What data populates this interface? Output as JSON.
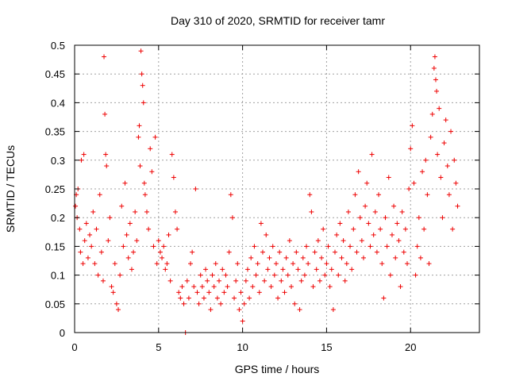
{
  "chart_data": {
    "type": "scatter",
    "title": "Day 310 of 2020, SRMTID for receiver tamr",
    "xlabel": "GPS time / hours",
    "ylabel": "SRMTID / TECUs",
    "xlim": [
      0,
      24.1
    ],
    "ylim": [
      0,
      0.5
    ],
    "x_ticks": [
      0,
      5,
      10,
      15,
      20
    ],
    "x_tick_labels": [
      "0",
      "5",
      "10",
      "15",
      "20"
    ],
    "y_ticks": [
      0,
      0.05,
      0.1,
      0.15,
      0.2,
      0.25,
      0.3,
      0.35,
      0.4,
      0.45,
      0.5
    ],
    "y_tick_labels": [
      "0",
      "0.05",
      "0.1",
      "0.15",
      "0.2",
      "0.25",
      "0.3",
      "0.35",
      "0.4",
      "0.45",
      "0.5"
    ],
    "grid": true,
    "marker": "+",
    "color": "#ee0000",
    "series": [
      {
        "name": "SRMTID",
        "points": [
          [
            0.05,
            0.22
          ],
          [
            0.1,
            0.24
          ],
          [
            0.15,
            0.2
          ],
          [
            0.2,
            0.25
          ],
          [
            0.3,
            0.18
          ],
          [
            0.35,
            0.14
          ],
          [
            0.4,
            0.3
          ],
          [
            0.5,
            0.12
          ],
          [
            0.55,
            0.31
          ],
          [
            0.6,
            0.16
          ],
          [
            0.7,
            0.19
          ],
          [
            0.8,
            0.13
          ],
          [
            0.9,
            0.17
          ],
          [
            1.0,
            0.15
          ],
          [
            1.1,
            0.21
          ],
          [
            1.2,
            0.12
          ],
          [
            1.3,
            0.18
          ],
          [
            1.4,
            0.1
          ],
          [
            1.5,
            0.24
          ],
          [
            1.6,
            0.14
          ],
          [
            1.7,
            0.09
          ],
          [
            1.75,
            0.48
          ],
          [
            1.8,
            0.38
          ],
          [
            1.85,
            0.31
          ],
          [
            1.9,
            0.29
          ],
          [
            2.0,
            0.16
          ],
          [
            2.1,
            0.2
          ],
          [
            2.2,
            0.08
          ],
          [
            2.3,
            0.07
          ],
          [
            2.4,
            0.12
          ],
          [
            2.5,
            0.05
          ],
          [
            2.6,
            0.04
          ],
          [
            2.7,
            0.1
          ],
          [
            2.8,
            0.22
          ],
          [
            2.9,
            0.15
          ],
          [
            3.0,
            0.26
          ],
          [
            3.1,
            0.17
          ],
          [
            3.2,
            0.13
          ],
          [
            3.3,
            0.19
          ],
          [
            3.4,
            0.11
          ],
          [
            3.5,
            0.14
          ],
          [
            3.6,
            0.21
          ],
          [
            3.7,
            0.16
          ],
          [
            3.8,
            0.34
          ],
          [
            3.85,
            0.36
          ],
          [
            3.9,
            0.29
          ],
          [
            3.95,
            0.49
          ],
          [
            4.0,
            0.45
          ],
          [
            4.05,
            0.43
          ],
          [
            4.1,
            0.4
          ],
          [
            4.15,
            0.26
          ],
          [
            4.2,
            0.24
          ],
          [
            4.3,
            0.21
          ],
          [
            4.4,
            0.18
          ],
          [
            4.5,
            0.32
          ],
          [
            4.6,
            0.28
          ],
          [
            4.7,
            0.15
          ],
          [
            4.8,
            0.34
          ],
          [
            4.9,
            0.12
          ],
          [
            5.0,
            0.16
          ],
          [
            5.1,
            0.14
          ],
          [
            5.2,
            0.13
          ],
          [
            5.3,
            0.15
          ],
          [
            5.4,
            0.11
          ],
          [
            5.5,
            0.12
          ],
          [
            5.6,
            0.17
          ],
          [
            5.7,
            0.09
          ],
          [
            5.8,
            0.31
          ],
          [
            5.9,
            0.27
          ],
          [
            6.0,
            0.21
          ],
          [
            6.1,
            0.18
          ],
          [
            6.2,
            0.07
          ],
          [
            6.3,
            0.06
          ],
          [
            6.4,
            0.08
          ],
          [
            6.5,
            0.05
          ],
          [
            6.6,
            0.0
          ],
          [
            6.7,
            0.09
          ],
          [
            6.8,
            0.06
          ],
          [
            6.9,
            0.12
          ],
          [
            7.0,
            0.14
          ],
          [
            7.1,
            0.08
          ],
          [
            7.2,
            0.25
          ],
          [
            7.3,
            0.07
          ],
          [
            7.4,
            0.05
          ],
          [
            7.5,
            0.1
          ],
          [
            7.6,
            0.08
          ],
          [
            7.7,
            0.06
          ],
          [
            7.8,
            0.11
          ],
          [
            7.9,
            0.09
          ],
          [
            8.0,
            0.07
          ],
          [
            8.1,
            0.04
          ],
          [
            8.2,
            0.1
          ],
          [
            8.3,
            0.08
          ],
          [
            8.4,
            0.12
          ],
          [
            8.5,
            0.06
          ],
          [
            8.6,
            0.09
          ],
          [
            8.7,
            0.05
          ],
          [
            8.8,
            0.11
          ],
          [
            8.9,
            0.07
          ],
          [
            9.0,
            0.1
          ],
          [
            9.1,
            0.08
          ],
          [
            9.2,
            0.14
          ],
          [
            9.3,
            0.24
          ],
          [
            9.4,
            0.2
          ],
          [
            9.5,
            0.06
          ],
          [
            9.6,
            0.09
          ],
          [
            9.7,
            0.12
          ],
          [
            9.8,
            0.04
          ],
          [
            9.9,
            0.07
          ],
          [
            10.0,
            0.02
          ],
          [
            10.1,
            0.05
          ],
          [
            10.2,
            0.09
          ],
          [
            10.3,
            0.11
          ],
          [
            10.4,
            0.06
          ],
          [
            10.5,
            0.13
          ],
          [
            10.6,
            0.08
          ],
          [
            10.7,
            0.15
          ],
          [
            10.8,
            0.1
          ],
          [
            10.9,
            0.12
          ],
          [
            11.0,
            0.07
          ],
          [
            11.1,
            0.19
          ],
          [
            11.2,
            0.14
          ],
          [
            11.3,
            0.09
          ],
          [
            11.4,
            0.17
          ],
          [
            11.5,
            0.11
          ],
          [
            11.6,
            0.13
          ],
          [
            11.7,
            0.08
          ],
          [
            11.8,
            0.15
          ],
          [
            11.9,
            0.1
          ],
          [
            12.0,
            0.12
          ],
          [
            12.1,
            0.06
          ],
          [
            12.2,
            0.14
          ],
          [
            12.3,
            0.09
          ],
          [
            12.4,
            0.11
          ],
          [
            12.5,
            0.07
          ],
          [
            12.6,
            0.13
          ],
          [
            12.7,
            0.1
          ],
          [
            12.8,
            0.16
          ],
          [
            12.9,
            0.08
          ],
          [
            13.0,
            0.12
          ],
          [
            13.1,
            0.05
          ],
          [
            13.2,
            0.14
          ],
          [
            13.3,
            0.11
          ],
          [
            13.4,
            0.04
          ],
          [
            13.5,
            0.09
          ],
          [
            13.6,
            0.13
          ],
          [
            13.7,
            0.1
          ],
          [
            13.8,
            0.15
          ],
          [
            13.9,
            0.12
          ],
          [
            14.0,
            0.24
          ],
          [
            14.1,
            0.21
          ],
          [
            14.2,
            0.08
          ],
          [
            14.3,
            0.14
          ],
          [
            14.4,
            0.11
          ],
          [
            14.5,
            0.16
          ],
          [
            14.6,
            0.09
          ],
          [
            14.7,
            0.13
          ],
          [
            14.8,
            0.18
          ],
          [
            14.9,
            0.1
          ],
          [
            15.0,
            0.12
          ],
          [
            15.1,
            0.15
          ],
          [
            15.2,
            0.08
          ],
          [
            15.3,
            0.11
          ],
          [
            15.4,
            0.04
          ],
          [
            15.5,
            0.14
          ],
          [
            15.6,
            0.17
          ],
          [
            15.7,
            0.1
          ],
          [
            15.8,
            0.19
          ],
          [
            15.9,
            0.13
          ],
          [
            16.0,
            0.16
          ],
          [
            16.1,
            0.09
          ],
          [
            16.2,
            0.12
          ],
          [
            16.3,
            0.21
          ],
          [
            16.4,
            0.15
          ],
          [
            16.5,
            0.11
          ],
          [
            16.6,
            0.18
          ],
          [
            16.7,
            0.24
          ],
          [
            16.8,
            0.14
          ],
          [
            16.9,
            0.28
          ],
          [
            17.0,
            0.2
          ],
          [
            17.1,
            0.16
          ],
          [
            17.2,
            0.13
          ],
          [
            17.3,
            0.22
          ],
          [
            17.4,
            0.26
          ],
          [
            17.5,
            0.19
          ],
          [
            17.6,
            0.15
          ],
          [
            17.7,
            0.31
          ],
          [
            17.8,
            0.17
          ],
          [
            17.9,
            0.21
          ],
          [
            18.0,
            0.14
          ],
          [
            18.1,
            0.24
          ],
          [
            18.2,
            0.18
          ],
          [
            18.3,
            0.12
          ],
          [
            18.4,
            0.06
          ],
          [
            18.5,
            0.2
          ],
          [
            18.6,
            0.15
          ],
          [
            18.7,
            0.27
          ],
          [
            18.8,
            0.1
          ],
          [
            18.9,
            0.17
          ],
          [
            19.0,
            0.22
          ],
          [
            19.1,
            0.13
          ],
          [
            19.2,
            0.19
          ],
          [
            19.3,
            0.16
          ],
          [
            19.4,
            0.08
          ],
          [
            19.5,
            0.21
          ],
          [
            19.6,
            0.14
          ],
          [
            19.7,
            0.18
          ],
          [
            19.8,
            0.12
          ],
          [
            19.9,
            0.25
          ],
          [
            20.0,
            0.32
          ],
          [
            20.1,
            0.36
          ],
          [
            20.2,
            0.26
          ],
          [
            20.3,
            0.1
          ],
          [
            20.4,
            0.15
          ],
          [
            20.5,
            0.2
          ],
          [
            20.6,
            0.13
          ],
          [
            20.7,
            0.28
          ],
          [
            20.8,
            0.18
          ],
          [
            20.9,
            0.3
          ],
          [
            21.0,
            0.24
          ],
          [
            21.1,
            0.12
          ],
          [
            21.2,
            0.34
          ],
          [
            21.3,
            0.38
          ],
          [
            21.4,
            0.46
          ],
          [
            21.45,
            0.48
          ],
          [
            21.5,
            0.44
          ],
          [
            21.55,
            0.42
          ],
          [
            21.6,
            0.31
          ],
          [
            21.7,
            0.39
          ],
          [
            21.8,
            0.27
          ],
          [
            21.9,
            0.2
          ],
          [
            22.0,
            0.33
          ],
          [
            22.1,
            0.37
          ],
          [
            22.2,
            0.29
          ],
          [
            22.3,
            0.24
          ],
          [
            22.4,
            0.35
          ],
          [
            22.5,
            0.18
          ],
          [
            22.6,
            0.3
          ],
          [
            22.7,
            0.26
          ],
          [
            22.8,
            0.22
          ]
        ]
      }
    ]
  }
}
